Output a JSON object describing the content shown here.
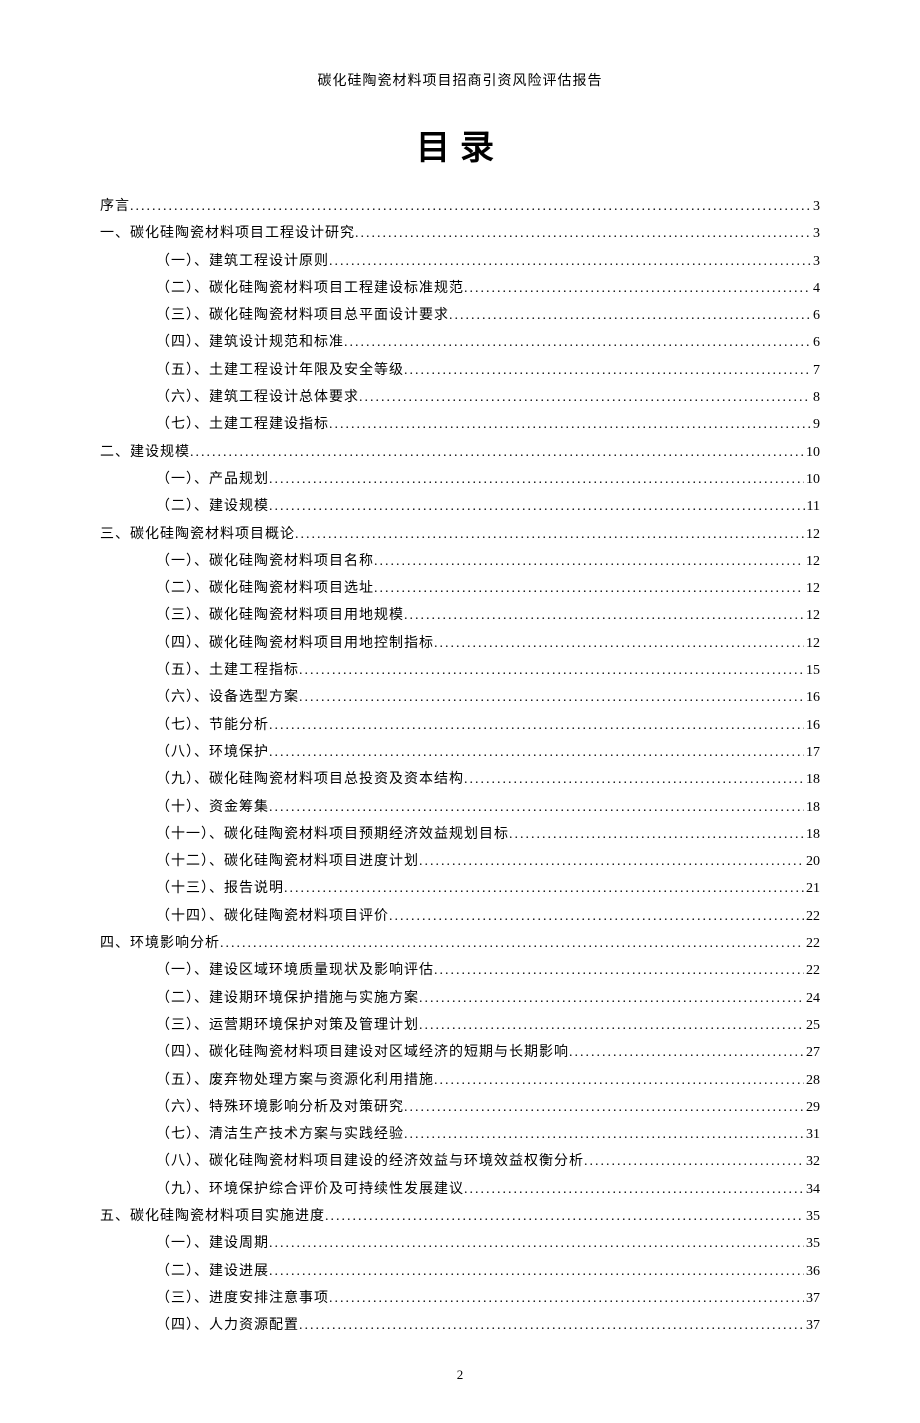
{
  "header": "碳化硅陶瓷材料项目招商引资风险评估报告",
  "title": "目录",
  "page_number": "2",
  "fonts": {
    "body": "SimSun",
    "title_size_pt": 34,
    "line_size_pt": 14
  },
  "colors": {
    "text": "#000000",
    "background": "#ffffff"
  },
  "toc": [
    {
      "label": "序言",
      "page": "3",
      "indent": 0
    },
    {
      "label": "一、碳化硅陶瓷材料项目工程设计研究",
      "page": "3",
      "indent": 0
    },
    {
      "label": "（一）、建筑工程设计原则",
      "page": "3",
      "indent": 1
    },
    {
      "label": "（二）、碳化硅陶瓷材料项目工程建设标准规范",
      "page": "4",
      "indent": 1
    },
    {
      "label": "（三）、碳化硅陶瓷材料项目总平面设计要求",
      "page": "6",
      "indent": 1
    },
    {
      "label": "（四）、建筑设计规范和标准",
      "page": "6",
      "indent": 1
    },
    {
      "label": "（五）、土建工程设计年限及安全等级",
      "page": "7",
      "indent": 1
    },
    {
      "label": "（六）、建筑工程设计总体要求",
      "page": "8",
      "indent": 1
    },
    {
      "label": "（七）、土建工程建设指标",
      "page": "9",
      "indent": 1
    },
    {
      "label": "二、建设规模",
      "page": "10",
      "indent": 0
    },
    {
      "label": "（一）、产品规划",
      "page": "10",
      "indent": 1
    },
    {
      "label": "（二）、建设规模",
      "page": "11",
      "indent": 1
    },
    {
      "label": "三、碳化硅陶瓷材料项目概论",
      "page": "12",
      "indent": 0
    },
    {
      "label": "（一）、碳化硅陶瓷材料项目名称",
      "page": "12",
      "indent": 1
    },
    {
      "label": "（二）、碳化硅陶瓷材料项目选址",
      "page": "12",
      "indent": 1
    },
    {
      "label": "（三）、碳化硅陶瓷材料项目用地规模",
      "page": "12",
      "indent": 1
    },
    {
      "label": "（四）、碳化硅陶瓷材料项目用地控制指标",
      "page": "12",
      "indent": 1
    },
    {
      "label": "（五）、土建工程指标",
      "page": "15",
      "indent": 1
    },
    {
      "label": "（六）、设备选型方案",
      "page": "16",
      "indent": 1
    },
    {
      "label": "（七）、节能分析",
      "page": "16",
      "indent": 1
    },
    {
      "label": "（八）、环境保护",
      "page": "17",
      "indent": 1
    },
    {
      "label": "（九）、碳化硅陶瓷材料项目总投资及资本结构",
      "page": "18",
      "indent": 1
    },
    {
      "label": "（十）、资金筹集",
      "page": "18",
      "indent": 1
    },
    {
      "label": "（十一）、碳化硅陶瓷材料项目预期经济效益规划目标",
      "page": "18",
      "indent": 1
    },
    {
      "label": "（十二）、碳化硅陶瓷材料项目进度计划",
      "page": "20",
      "indent": 1
    },
    {
      "label": "（十三）、报告说明",
      "page": "21",
      "indent": 1
    },
    {
      "label": "（十四）、碳化硅陶瓷材料项目评价",
      "page": "22",
      "indent": 1
    },
    {
      "label": "四、环境影响分析",
      "page": "22",
      "indent": 0
    },
    {
      "label": "（一）、建设区域环境质量现状及影响评估",
      "page": "22",
      "indent": 1
    },
    {
      "label": "（二）、建设期环境保护措施与实施方案",
      "page": "24",
      "indent": 1
    },
    {
      "label": "（三）、运营期环境保护对策及管理计划",
      "page": "25",
      "indent": 1
    },
    {
      "label": "（四）、碳化硅陶瓷材料项目建设对区域经济的短期与长期影响",
      "page": "27",
      "indent": 1
    },
    {
      "label": "（五）、废弃物处理方案与资源化利用措施",
      "page": "28",
      "indent": 1
    },
    {
      "label": "（六）、特殊环境影响分析及对策研究",
      "page": "29",
      "indent": 1
    },
    {
      "label": "（七）、清洁生产技术方案与实践经验",
      "page": "31",
      "indent": 1
    },
    {
      "label": "（八）、碳化硅陶瓷材料项目建设的经济效益与环境效益权衡分析",
      "page": "32",
      "indent": 1
    },
    {
      "label": "（九）、环境保护综合评价及可持续性发展建议",
      "page": "34",
      "indent": 1
    },
    {
      "label": "五、碳化硅陶瓷材料项目实施进度",
      "page": "35",
      "indent": 0
    },
    {
      "label": "（一）、建设周期",
      "page": "35",
      "indent": 1
    },
    {
      "label": "（二）、建设进展",
      "page": "36",
      "indent": 1
    },
    {
      "label": "（三）、进度安排注意事项",
      "page": "37",
      "indent": 1
    },
    {
      "label": "（四）、人力资源配置",
      "page": "37",
      "indent": 1
    }
  ]
}
